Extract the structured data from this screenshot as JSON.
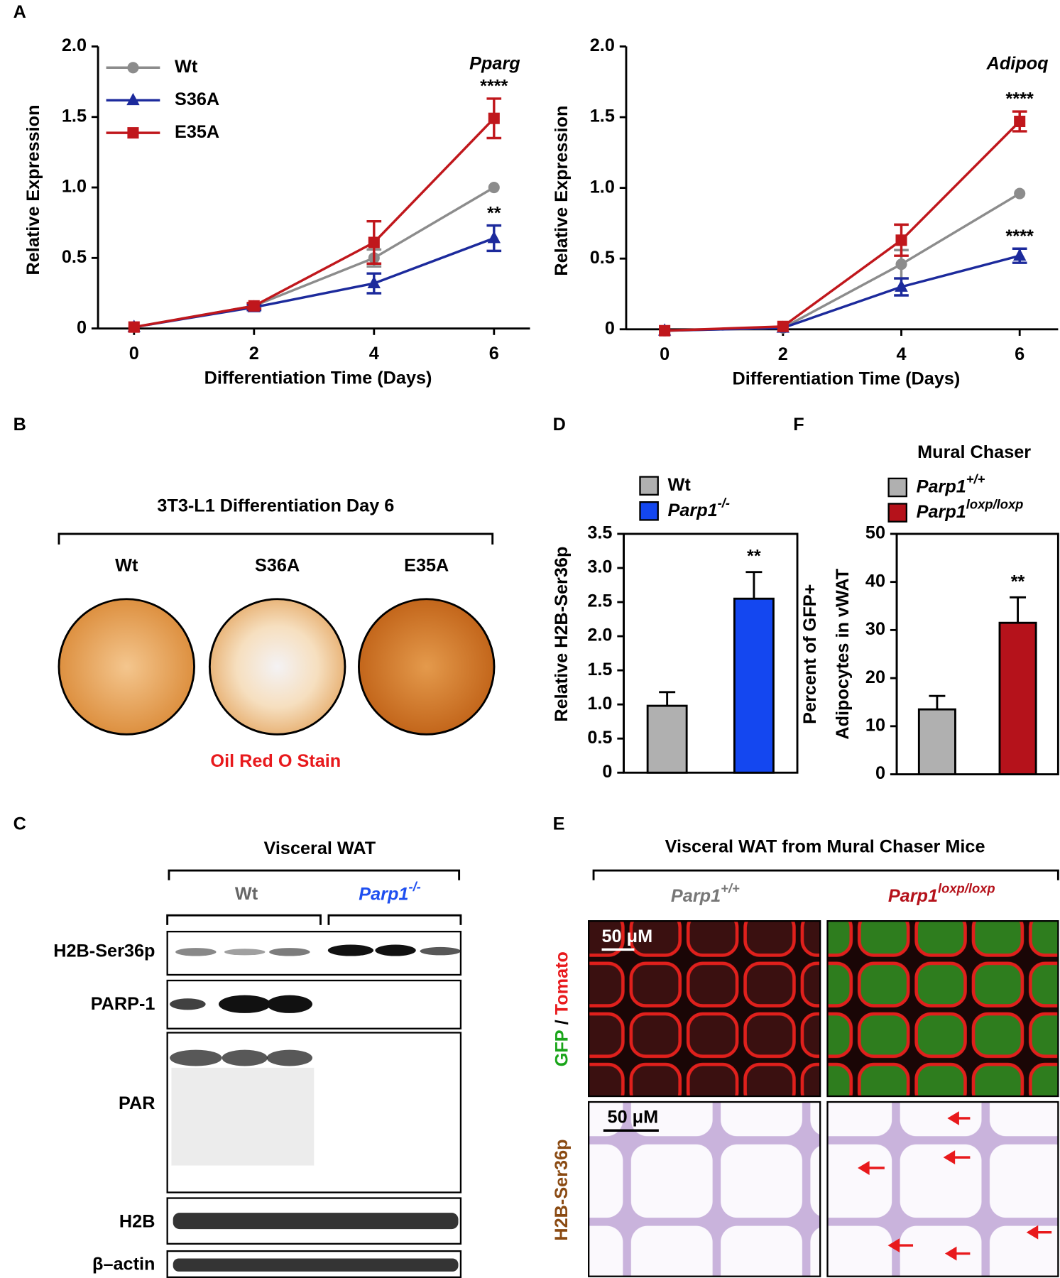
{
  "chart_data": [
    {
      "type": "line",
      "title": "Pparg",
      "xlabel": "Differentiation Time (Days)",
      "ylabel": "Relative Expression",
      "x": [
        0,
        2,
        4,
        6
      ],
      "xlim": [
        -0.6,
        6.6
      ],
      "xticks": [
        0,
        2,
        4,
        6
      ],
      "ylim": [
        0,
        2
      ],
      "yticks": [
        0,
        0.5,
        {
          "value": 1,
          "label": "1.0"
        },
        1.5,
        {
          "value": 2,
          "label": "2.0"
        }
      ],
      "legend": true,
      "series": [
        {
          "name": "Wt",
          "color": "#8c8c8c",
          "marker": "circle",
          "values": [
            0.01,
            0.16,
            0.5,
            1.0
          ],
          "errors": [
            0,
            0.01,
            0.06,
            0
          ],
          "sig_labels": [
            null,
            null,
            null,
            null
          ]
        },
        {
          "name": "S36A",
          "color": "#1c2a9c",
          "marker": "triangle",
          "values": [
            0.01,
            0.15,
            0.32,
            0.64
          ],
          "errors": [
            0,
            0.02,
            0.07,
            0.09
          ],
          "sig_labels": [
            null,
            null,
            null,
            "**"
          ]
        },
        {
          "name": "E35A",
          "color": "#c0171c",
          "marker": "square",
          "values": [
            0.01,
            0.16,
            0.61,
            1.49
          ],
          "errors": [
            0,
            0.02,
            0.15,
            0.14
          ],
          "sig_labels": [
            null,
            null,
            null,
            "****"
          ]
        }
      ]
    },
    {
      "type": "line",
      "title": "Adipoq",
      "xlabel": "Differentiation Time (Days)",
      "ylabel": "Relative Expression",
      "x": [
        0,
        2,
        4,
        6
      ],
      "xlim": [
        -0.65,
        6.65
      ],
      "xticks": [
        0,
        2,
        4,
        6
      ],
      "ylim": [
        0,
        2
      ],
      "yticks": [
        0,
        0.5,
        {
          "value": 1,
          "label": "1.0"
        },
        1.5,
        {
          "value": 2,
          "label": "2.0"
        }
      ],
      "legend": false,
      "series": [
        {
          "name": "Wt",
          "color": "#8c8c8c",
          "marker": "circle",
          "values": [
            -0.01,
            0.01,
            0.46,
            0.96
          ],
          "errors": [
            0,
            0,
            0.1,
            0
          ],
          "sig_labels": [
            null,
            null,
            null,
            null
          ]
        },
        {
          "name": "S36A",
          "color": "#1c2a9c",
          "marker": "triangle",
          "values": [
            -0.01,
            0.01,
            0.3,
            0.52
          ],
          "errors": [
            0,
            0,
            0.06,
            0.05
          ],
          "sig_labels": [
            null,
            null,
            null,
            "****"
          ]
        },
        {
          "name": "E35A",
          "color": "#c0171c",
          "marker": "square",
          "values": [
            -0.01,
            0.02,
            0.63,
            1.47
          ],
          "errors": [
            0,
            0,
            0.11,
            0.07
          ],
          "sig_labels": [
            null,
            null,
            null,
            "****"
          ]
        }
      ]
    },
    {
      "type": "bar",
      "ylabel": "Relative H2B-Ser36p",
      "ylim": [
        0,
        3.5
      ],
      "yticks": [
        0,
        0.5,
        {
          "value": 1,
          "label": "1.0"
        },
        1.5,
        {
          "value": 2,
          "label": "2.0"
        },
        2.5,
        {
          "value": 3,
          "label": "3.0"
        },
        3.5
      ],
      "series": [
        {
          "name": "Wt",
          "italic": false,
          "color": "#b0b0b0",
          "values": [
            0.98
          ],
          "errors": [
            0.2
          ],
          "sig_labels": [
            null
          ]
        },
        {
          "name": "Parp1",
          "superscript": "-/-",
          "italic": true,
          "color": "#1447f0",
          "values": [
            2.55
          ],
          "errors": [
            0.39
          ],
          "sig_labels": [
            "**"
          ]
        }
      ]
    },
    {
      "type": "bar",
      "legend_title": "Mural Chaser",
      "ylabel": [
        "Percent of GFP+",
        "Adipocytes in vWAT"
      ],
      "ylim": [
        0,
        50
      ],
      "yticks": [
        0,
        10,
        20,
        30,
        40,
        50
      ],
      "series": [
        {
          "name": "Parp1",
          "superscript": "+/+",
          "italic": true,
          "color": "#b0b0b0",
          "values": [
            13.5
          ],
          "errors": [
            2.8
          ],
          "sig_labels": [
            null
          ]
        },
        {
          "name": "Parp1",
          "superscript": "loxp/loxp",
          "italic": true,
          "color": "#b5121b",
          "values": [
            31.5
          ],
          "errors": [
            5.3
          ],
          "sig_labels": [
            "**"
          ]
        }
      ]
    }
  ],
  "figure": {
    "panel_labels": [
      "A",
      "B",
      "C",
      "D",
      "E",
      "F"
    ],
    "b": {
      "title": "3T3-L1 Differentiation Day 6",
      "wells": [
        "Wt",
        "S36A",
        "E35A"
      ],
      "stain": "Oil Red O Stain"
    },
    "c": {
      "title": "Visceral WAT",
      "group1": "Wt",
      "group2": "Parp1",
      "group2_sup": "-/-",
      "rows": [
        "H2B-Ser36p",
        "PARP-1",
        "PAR",
        "H2B",
        "β–actin"
      ]
    },
    "e": {
      "title": "Visceral WAT from Mural Chaser Mice",
      "col1": "Parp1",
      "col1_sup": "+/+",
      "col2": "Parp1",
      "col2_sup": "loxp/loxp",
      "row1_a": "GFP",
      "row1_sep": " / ",
      "row1_b": "Tomato",
      "row2": "H2B-Ser36p",
      "scale1": "50 μM",
      "scale2": "50 μM"
    }
  }
}
